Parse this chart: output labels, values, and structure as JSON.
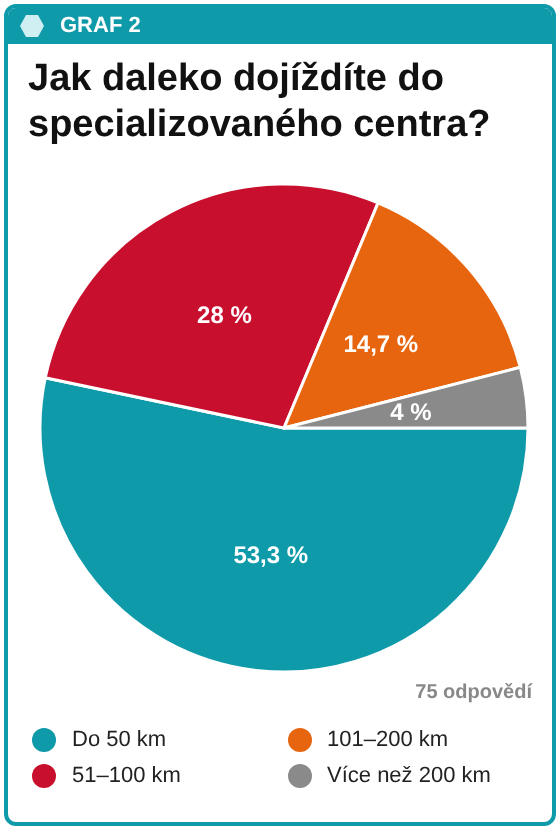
{
  "chart_data": {
    "type": "pie",
    "title": "Jak daleko dojíždíte do specializovaného centra?",
    "annotations": [
      "GRAF 2",
      "75 odpovědí"
    ],
    "categories": [
      "Do 50 km",
      "51–100 km",
      "101–200 km",
      "Více než 200 km"
    ],
    "values": [
      53.3,
      28,
      14.7,
      4
    ],
    "colors": [
      "#0e9aa8",
      "#c8102e",
      "#e8650f",
      "#8a8a8a"
    ],
    "value_labels": [
      "53,3 %",
      "28 %",
      "14,7 %",
      "4 %"
    ],
    "legend": "bottom"
  }
}
